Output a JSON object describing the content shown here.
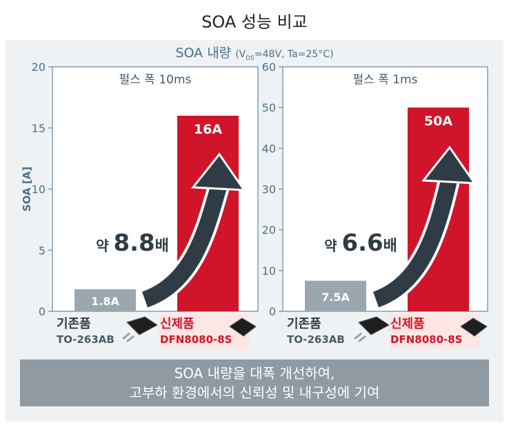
{
  "title": "SOA 성능 비교",
  "subtitle": {
    "main": "SOA 내량",
    "cond_prefix": "(V",
    "cond_sub": "DS",
    "cond_rest": "=48V, Ta=25°C)"
  },
  "colors": {
    "legacy": "#9aa7ae",
    "new": "#d0152b",
    "arrow": "#2f3c45",
    "axis": "#4e6f86",
    "banner": "#8f9aa2"
  },
  "chart_data": [
    {
      "type": "bar",
      "title": "펄스 폭 10ms",
      "ylabel": "SOA [A]",
      "ylim": [
        0,
        20
      ],
      "yticks": [
        0,
        5,
        10,
        15,
        20
      ],
      "categories": [
        "기존품",
        "신제품"
      ],
      "parts": [
        "TO-263AB",
        "DFN8080-8S"
      ],
      "values": [
        1.8,
        16
      ],
      "value_labels": [
        "1.8A",
        "16A"
      ],
      "ratio_prefix": "약 ",
      "ratio_value": "8.8",
      "ratio_suffix": "배"
    },
    {
      "type": "bar",
      "title": "펄스 폭 1ms",
      "ylabel": "",
      "ylim": [
        0,
        60
      ],
      "yticks": [
        0,
        10,
        20,
        30,
        40,
        50,
        60
      ],
      "categories": [
        "기존품",
        "신제품"
      ],
      "parts": [
        "TO-263AB",
        "DFN8080-8S"
      ],
      "values": [
        7.5,
        50
      ],
      "value_labels": [
        "7.5A",
        "50A"
      ],
      "ratio_prefix": "약 ",
      "ratio_value": "6.6",
      "ratio_suffix": "배"
    }
  ],
  "banner": {
    "line1": "SOA 내량을 대폭 개선하여,",
    "line2": "고부하 환경에서의 신뢰성 및 내구성에 기여"
  }
}
